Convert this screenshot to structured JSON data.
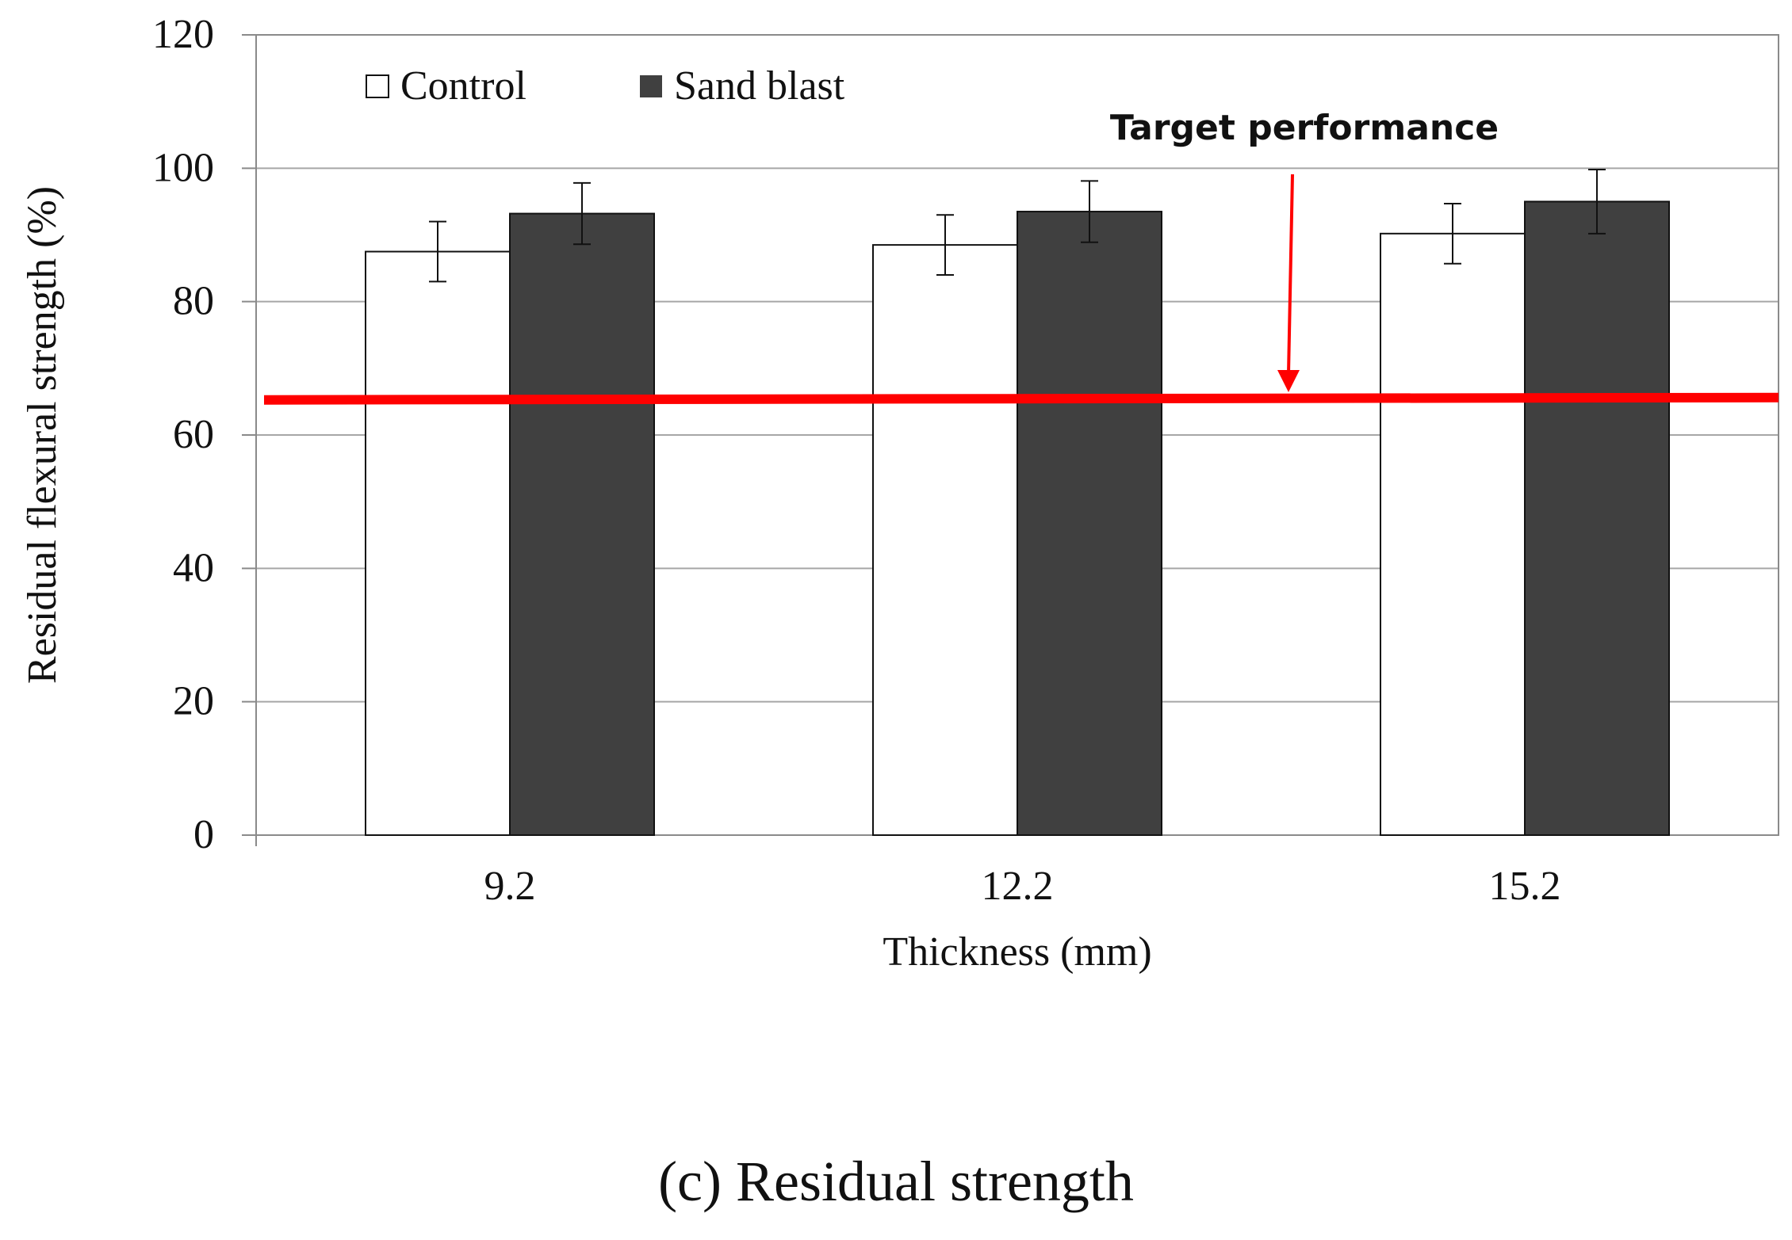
{
  "chart_data": {
    "type": "bar",
    "categories": [
      "9.2",
      "12.2",
      "15.2"
    ],
    "series": [
      {
        "name": "Control",
        "values": [
          87.5,
          88.5,
          90.2
        ],
        "errors": [
          4.5,
          4.5,
          4.5
        ],
        "color": "#ffffff"
      },
      {
        "name": "Sand blast",
        "values": [
          93.2,
          93.5,
          95.0
        ],
        "errors": [
          4.6,
          4.6,
          4.8
        ],
        "color": "#404040"
      }
    ],
    "xlabel": "Thickness (mm)",
    "ylabel": "Residual flexural strength  (%)",
    "ylim": [
      0,
      120
    ],
    "yticks": [
      "0",
      "20",
      "40",
      "60",
      "80",
      "100",
      "120"
    ],
    "grid": true,
    "legend": "top-left",
    "target": {
      "value": 65.5,
      "label": "Target performance",
      "color": "#ff0000"
    }
  },
  "caption": "(c) Residual strength"
}
